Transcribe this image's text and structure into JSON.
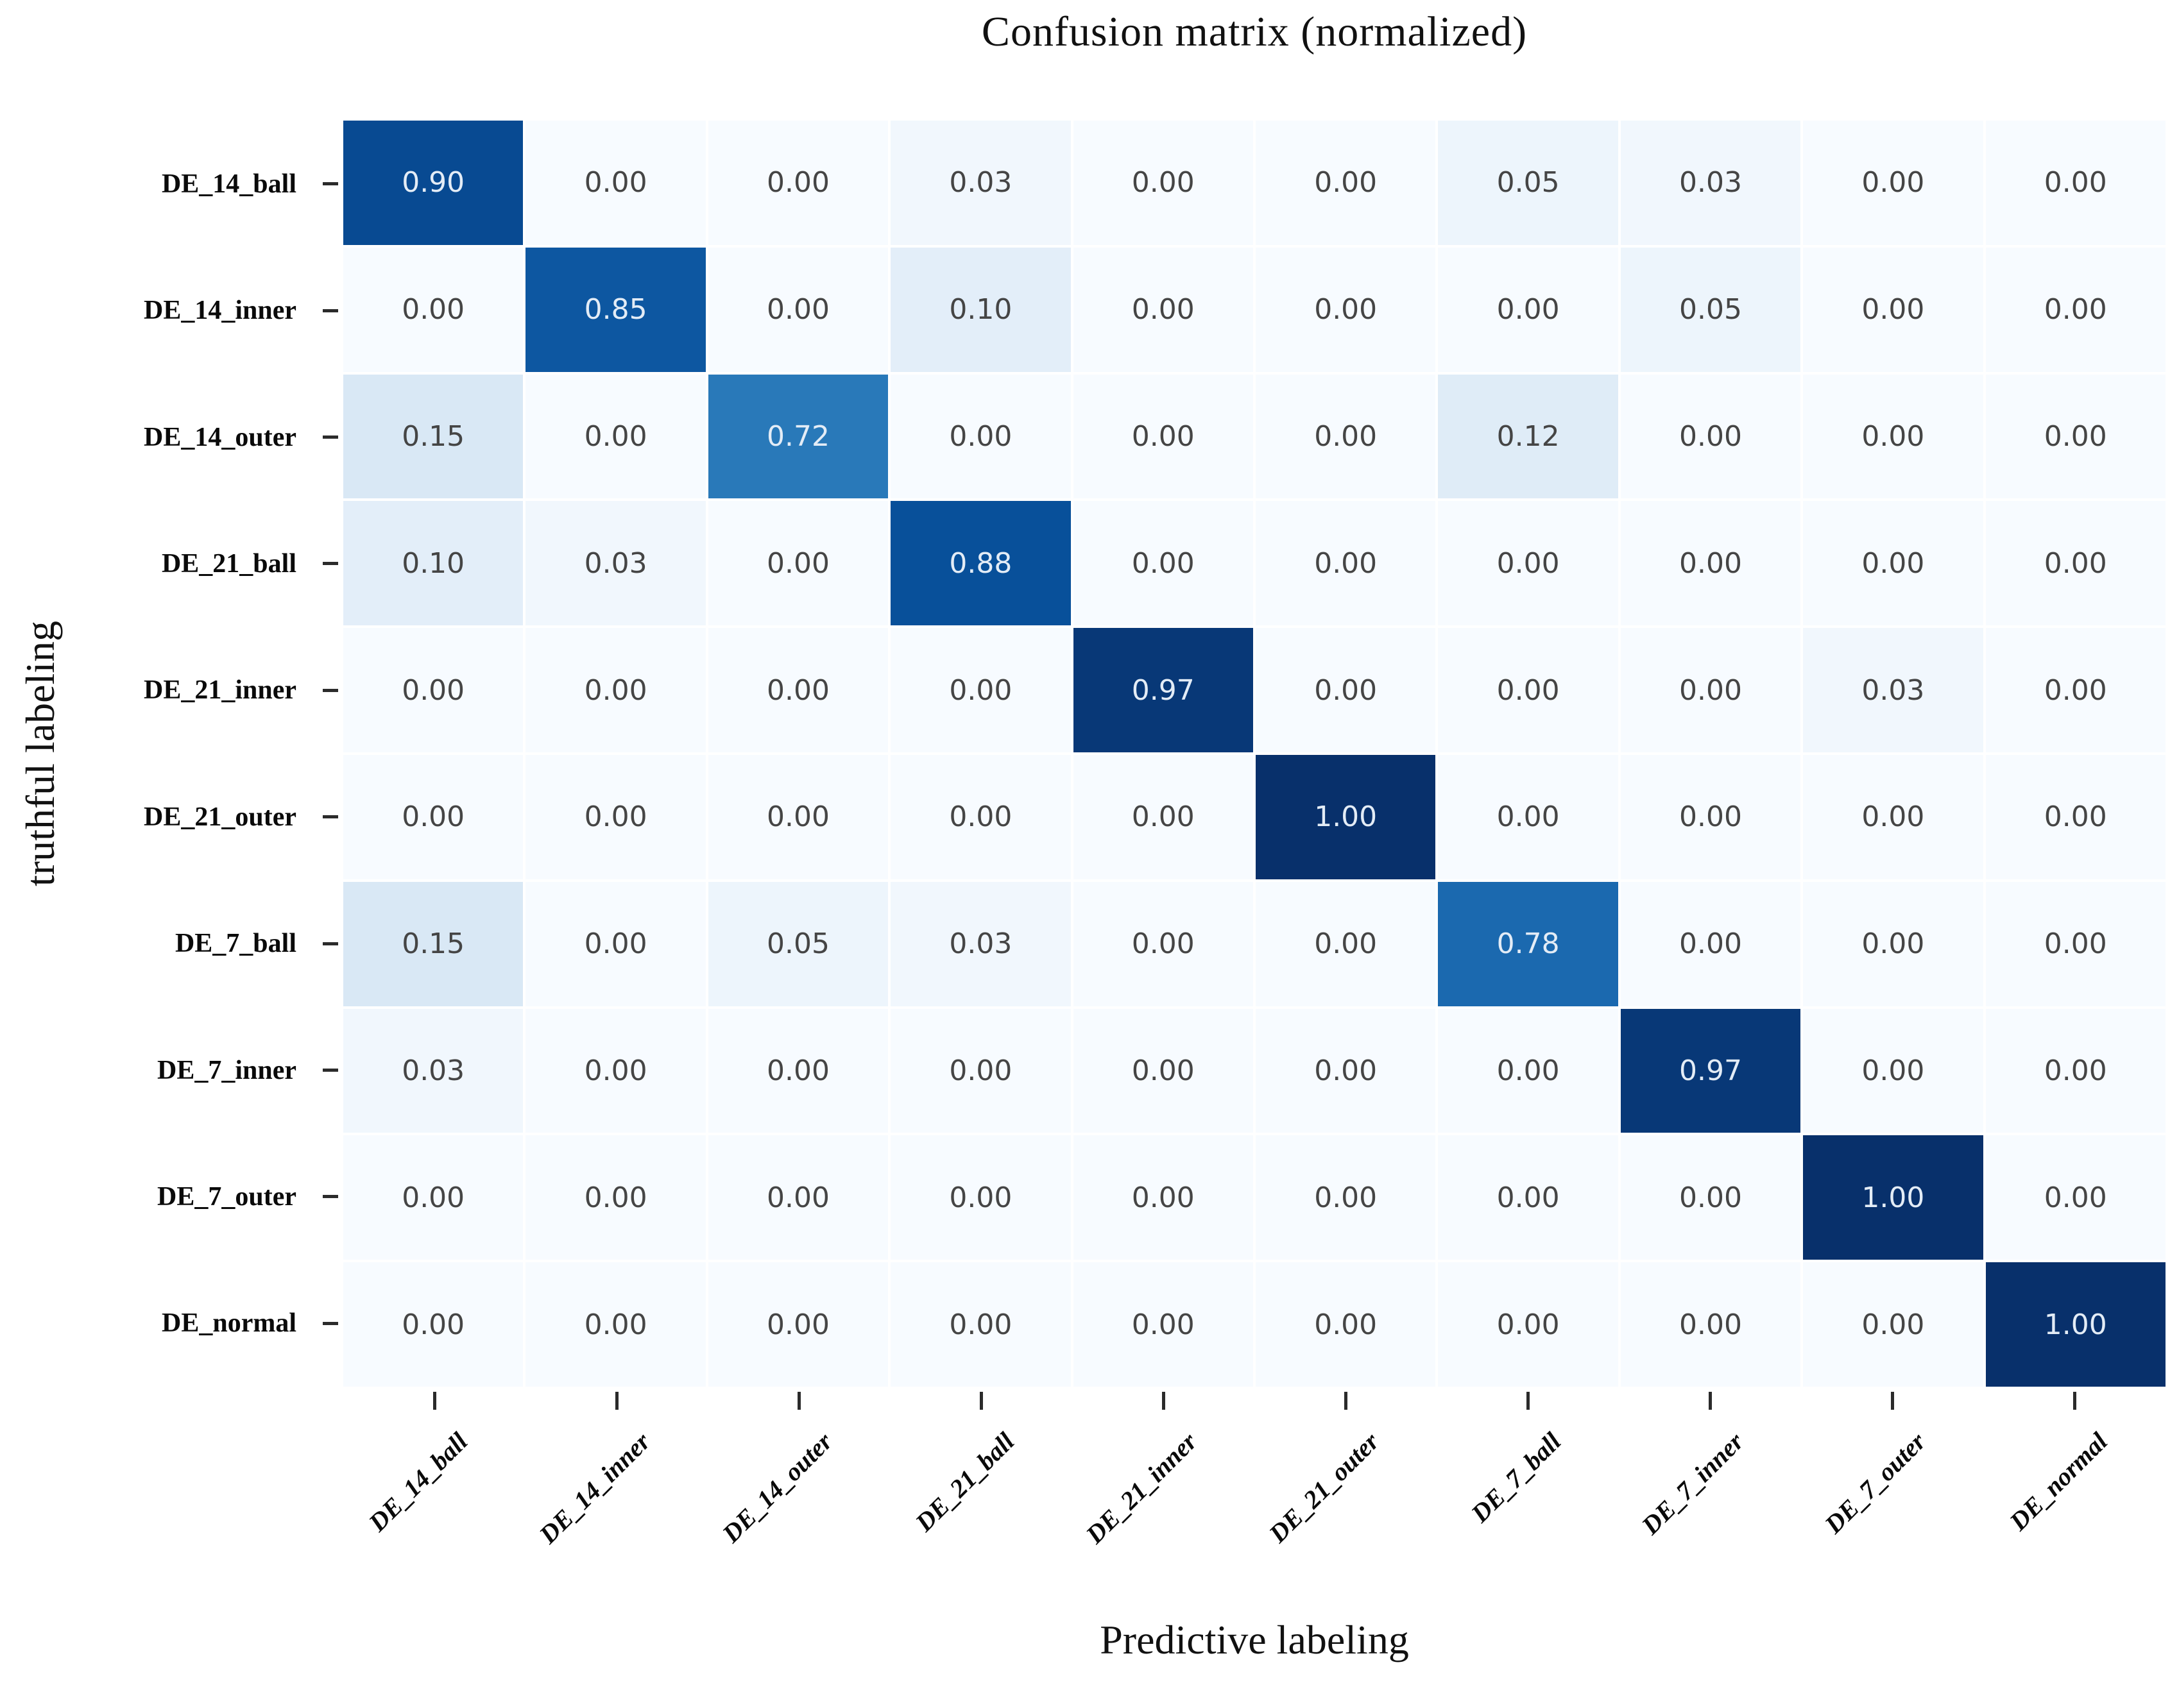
{
  "chart_data": {
    "type": "heatmap",
    "title": "Confusion matrix (normalized)",
    "xlabel": "Predictive labeling",
    "ylabel": "truthful labeling",
    "x_categories": [
      "DE_14_ball",
      "DE_14_inner",
      "DE_14_outer",
      "DE_21_ball",
      "DE_21_inner",
      "DE_21_outer",
      "DE_7_ball",
      "DE_7_inner",
      "DE_7_outer",
      "DE_normal"
    ],
    "y_categories": [
      "DE_14_ball",
      "DE_14_inner",
      "DE_14_outer",
      "DE_21_ball",
      "DE_21_inner",
      "DE_21_outer",
      "DE_7_ball",
      "DE_7_inner",
      "DE_7_outer",
      "DE_normal"
    ],
    "matrix": [
      [
        0.9,
        0.0,
        0.0,
        0.03,
        0.0,
        0.0,
        0.05,
        0.03,
        0.0,
        0.0
      ],
      [
        0.0,
        0.85,
        0.0,
        0.1,
        0.0,
        0.0,
        0.0,
        0.05,
        0.0,
        0.0
      ],
      [
        0.15,
        0.0,
        0.72,
        0.0,
        0.0,
        0.0,
        0.12,
        0.0,
        0.0,
        0.0
      ],
      [
        0.1,
        0.03,
        0.0,
        0.88,
        0.0,
        0.0,
        0.0,
        0.0,
        0.0,
        0.0
      ],
      [
        0.0,
        0.0,
        0.0,
        0.0,
        0.97,
        0.0,
        0.0,
        0.0,
        0.03,
        0.0
      ],
      [
        0.0,
        0.0,
        0.0,
        0.0,
        0.0,
        1.0,
        0.0,
        0.0,
        0.0,
        0.0
      ],
      [
        0.15,
        0.0,
        0.05,
        0.03,
        0.0,
        0.0,
        0.78,
        0.0,
        0.0,
        0.0
      ],
      [
        0.03,
        0.0,
        0.0,
        0.0,
        0.0,
        0.0,
        0.0,
        0.97,
        0.0,
        0.0
      ],
      [
        0.0,
        0.0,
        0.0,
        0.0,
        0.0,
        0.0,
        0.0,
        0.0,
        1.0,
        0.0
      ],
      [
        0.0,
        0.0,
        0.0,
        0.0,
        0.0,
        0.0,
        0.0,
        0.0,
        0.0,
        1.0
      ]
    ],
    "value_format_decimals": 2,
    "value_range": [
      0,
      1
    ],
    "colormap": "Blues",
    "colormap_stops": [
      [
        0.0,
        "#f7fbff"
      ],
      [
        0.125,
        "#deebf7"
      ],
      [
        0.25,
        "#c6dbef"
      ],
      [
        0.375,
        "#9ecae1"
      ],
      [
        0.5,
        "#6baed6"
      ],
      [
        0.625,
        "#4292c6"
      ],
      [
        0.75,
        "#2171b5"
      ],
      [
        0.875,
        "#08519c"
      ],
      [
        1.0,
        "#08306b"
      ]
    ],
    "cell_text_color_on_light": "#454545",
    "cell_text_color_on_dark": "#e3ecf6",
    "tick_color": "#2b2b2b",
    "legend": false,
    "grid_gap_color": "#ffffff"
  }
}
